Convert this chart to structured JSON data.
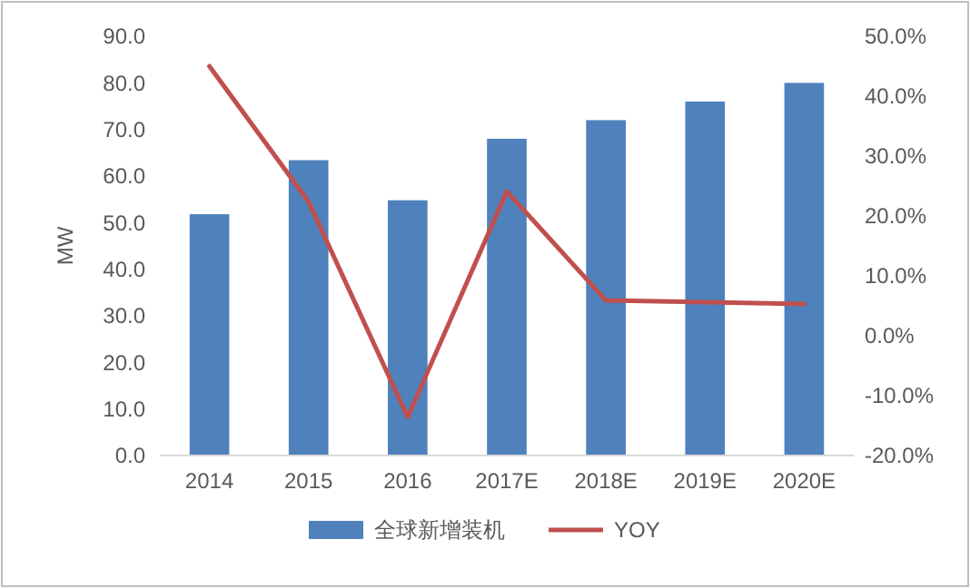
{
  "chart_data": {
    "type": "bar",
    "ylabel": "MW",
    "categories": [
      "2014",
      "2015",
      "2016",
      "2017E",
      "2018E",
      "2019E",
      "2020E"
    ],
    "series": [
      {
        "name": "全球新增装机",
        "color": "#4f81bd",
        "values": [
          51.8,
          63.4,
          54.8,
          68,
          72,
          76,
          80
        ]
      },
      {
        "name": "YOY",
        "type": "line",
        "axis": "y2",
        "color": "#c0504d",
        "values": [
          45.0,
          22.4,
          -13.6,
          24.1,
          5.9,
          5.6,
          5.3
        ]
      }
    ],
    "ylim": [
      0,
      90
    ],
    "yticks": [
      {
        "value": 0,
        "label": "0.0"
      },
      {
        "value": 10,
        "label": "10.0"
      },
      {
        "value": 20,
        "label": "20.0"
      },
      {
        "value": 30,
        "label": "30.0"
      },
      {
        "value": 40,
        "label": "40.0"
      },
      {
        "value": 50,
        "label": "50.0"
      },
      {
        "value": 60,
        "label": "60.0"
      },
      {
        "value": 70,
        "label": "70.0"
      },
      {
        "value": 80,
        "label": "80.0"
      },
      {
        "value": 90,
        "label": "90.0"
      }
    ],
    "y2lim": [
      -20,
      50
    ],
    "y2ticks": [
      {
        "value": -20,
        "label": "-20.0%"
      },
      {
        "value": -10,
        "label": "-10.0%"
      },
      {
        "value": 0,
        "label": "0.0%"
      },
      {
        "value": 10,
        "label": "10.0%"
      },
      {
        "value": 20,
        "label": "20.0%"
      },
      {
        "value": 30,
        "label": "30.0%"
      },
      {
        "value": 40,
        "label": "40.0%"
      },
      {
        "value": 50,
        "label": "50.0%"
      }
    ],
    "legend": "bottom",
    "grid": false,
    "marker": "none",
    "line_style": "solid"
  }
}
